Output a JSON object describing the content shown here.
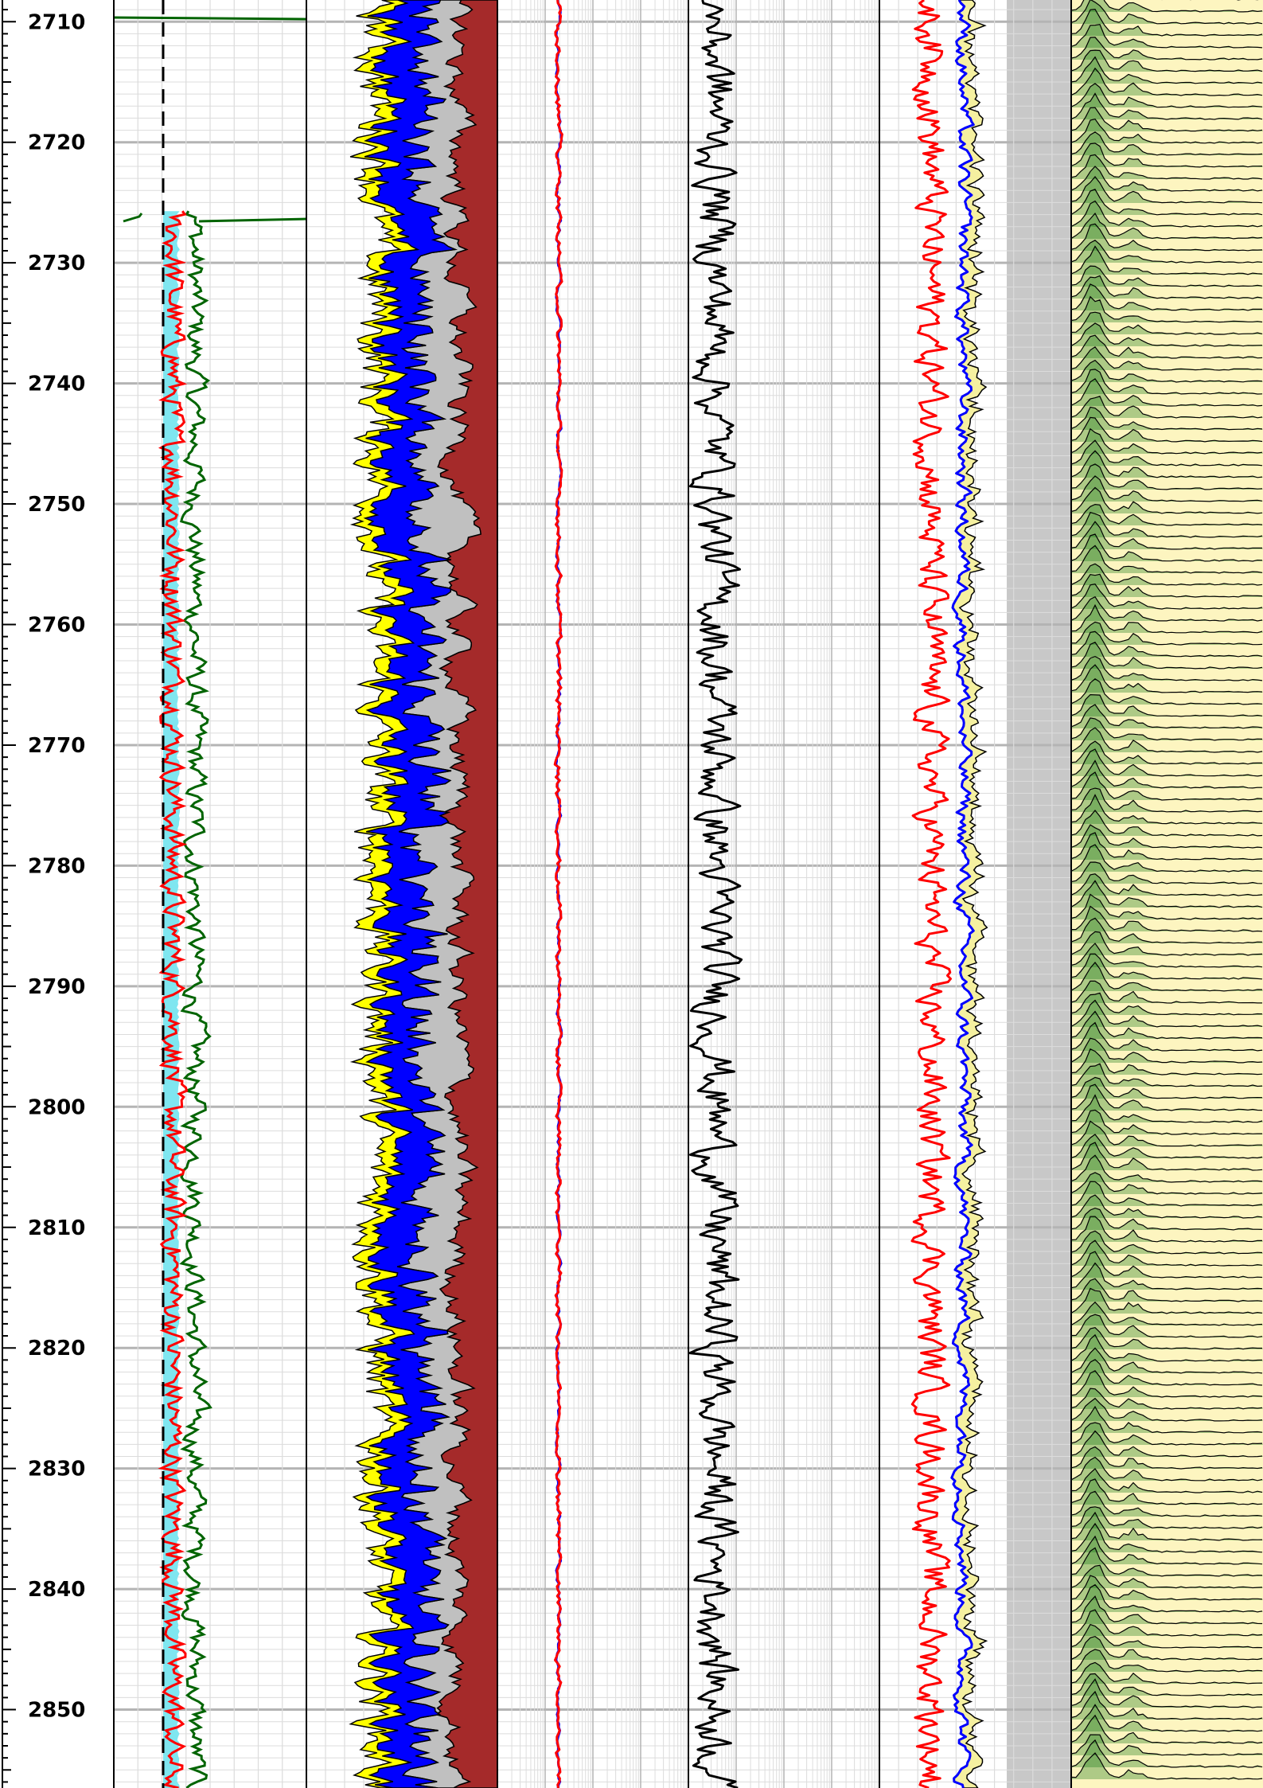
{
  "chart_data": {
    "type": "line",
    "depth_axis": {
      "range": [
        2708.2,
        2856.5
      ],
      "major_step": 10,
      "minor_step": 1,
      "tick_labels": [
        "2710",
        "2720",
        "2730",
        "2740",
        "2750",
        "2760",
        "2770",
        "2780",
        "2790",
        "2800",
        "2810",
        "2820",
        "2830",
        "2840",
        "2850"
      ]
    },
    "tracks": [
      {
        "name": "track1",
        "scale": "linear",
        "gridlines": 8,
        "curves": [
          {
            "color": "#006400",
            "style": "solid",
            "description": "green curve"
          },
          {
            "color": "#ff0000",
            "style": "solid",
            "description": "red curve"
          },
          {
            "color": "#000000",
            "style": "dashed",
            "description": "black dashed line"
          }
        ],
        "fill": {
          "color": "#7fe6f0"
        }
      },
      {
        "name": "track2",
        "scale": "linear",
        "gridlines": 10,
        "fills": [
          {
            "color": "#ffff00"
          },
          {
            "color": "#0000ff"
          },
          {
            "color": "#ff0000"
          },
          {
            "color": "#c0c0c0"
          },
          {
            "color": "#a52a2a"
          }
        ]
      },
      {
        "name": "track3",
        "scale": "log",
        "decades": 4,
        "curves": [
          {
            "color": "#0000ff"
          },
          {
            "color": "#ff0000"
          }
        ]
      },
      {
        "name": "track4",
        "scale": "log",
        "decades": 4,
        "curves": [
          {
            "color": "#000000"
          }
        ]
      },
      {
        "name": "track5",
        "scale": "linear",
        "gridlines": 10,
        "curves": [
          {
            "color": "#ff0000"
          },
          {
            "color": "#0000ff"
          },
          {
            "color": "#000000"
          }
        ],
        "fills": [
          {
            "color": "#f5f0a0"
          },
          {
            "color": "#c8c8c8"
          }
        ]
      },
      {
        "name": "track6",
        "scale": "linear",
        "description": "stacked waveform distribution",
        "fills": [
          {
            "color": "#fdf5c0"
          },
          {
            "color": "#1a7a1a"
          }
        ]
      }
    ],
    "colors": {
      "grid_major": "#b4b4b4",
      "grid_minor": "#dcdcdc",
      "track_border": "#000000"
    }
  }
}
